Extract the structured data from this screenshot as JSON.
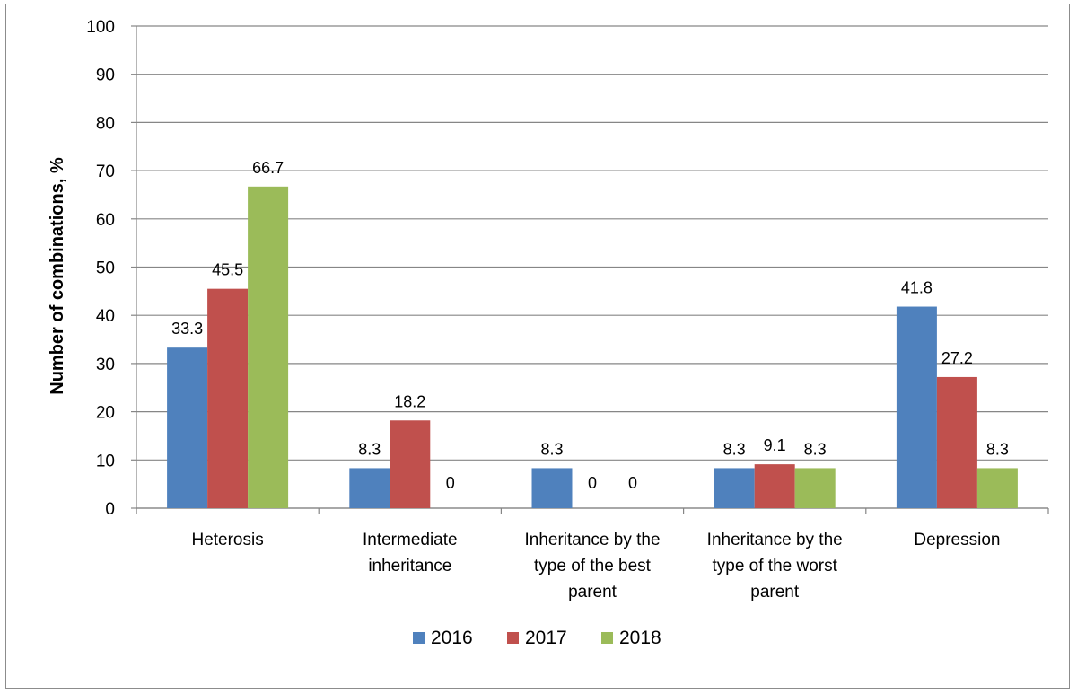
{
  "chart_data": {
    "type": "bar",
    "ylabel": "Number of combinations, %",
    "xlabel": "",
    "ylim": [
      0,
      100
    ],
    "yticks": [
      0,
      10,
      20,
      30,
      40,
      50,
      60,
      70,
      80,
      90,
      100
    ],
    "grid": true,
    "legend_position": "bottom",
    "categories": [
      [
        "Heterosis"
      ],
      [
        "Intermediate",
        "inheritance"
      ],
      [
        "Inheritance by the",
        "type of the best",
        "parent"
      ],
      [
        "Inheritance by the",
        "type of the worst",
        "parent"
      ],
      [
        "Depression"
      ]
    ],
    "series": [
      {
        "name": "2016",
        "color": "#4f81bd",
        "values": [
          33.3,
          8.3,
          8.3,
          8.3,
          41.8
        ]
      },
      {
        "name": "2017",
        "color": "#c0504d",
        "values": [
          45.5,
          18.2,
          0,
          9.1,
          27.2
        ]
      },
      {
        "name": "2018",
        "color": "#9bbb59",
        "values": [
          66.7,
          0,
          0,
          8.3,
          8.3
        ]
      }
    ]
  }
}
